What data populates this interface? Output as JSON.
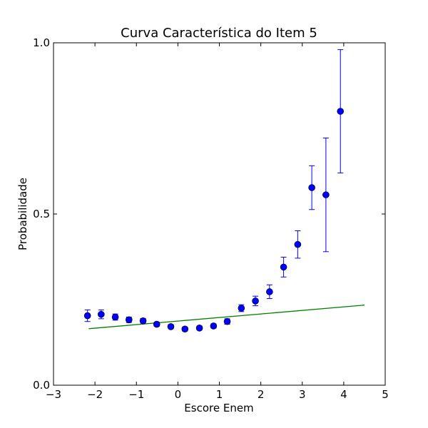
{
  "chart_data": {
    "type": "scatter",
    "title": "Curva Característica do Item 5",
    "xlabel": "Escore Enem",
    "ylabel": "Probabilidade",
    "xlim": [
      -3,
      5
    ],
    "ylim": [
      0.0,
      1.0
    ],
    "x_ticks": [
      -3,
      -2,
      -1,
      0,
      1,
      2,
      3,
      4,
      5
    ],
    "x_tick_labels": [
      "−3",
      "−2",
      "−1",
      "0",
      "1",
      "2",
      "3",
      "4",
      "5"
    ],
    "y_ticks": [
      0.0,
      0.5,
      1.0
    ],
    "y_tick_labels": [
      "0.0",
      "0.5",
      "1.0"
    ],
    "grid": false,
    "colors": {
      "points": "#0000ff",
      "errorbars": "#0000ff",
      "curve": "#008000"
    },
    "series": [
      {
        "type": "scatter_errorbar",
        "points": [
          {
            "x": -2.18,
            "y": 0.203,
            "err": 0.017
          },
          {
            "x": -1.85,
            "y": 0.207,
            "err": 0.013
          },
          {
            "x": -1.51,
            "y": 0.199,
            "err": 0.009
          },
          {
            "x": -1.18,
            "y": 0.191,
            "err": 0.008
          },
          {
            "x": -0.84,
            "y": 0.188,
            "err": 0.007
          },
          {
            "x": -0.51,
            "y": 0.178,
            "err": 0.006
          },
          {
            "x": -0.17,
            "y": 0.171,
            "err": 0.006
          },
          {
            "x": 0.17,
            "y": 0.164,
            "err": 0.006
          },
          {
            "x": 0.52,
            "y": 0.167,
            "err": 0.006
          },
          {
            "x": 0.86,
            "y": 0.173,
            "err": 0.006
          },
          {
            "x": 1.19,
            "y": 0.186,
            "err": 0.008
          },
          {
            "x": 1.53,
            "y": 0.225,
            "err": 0.01
          },
          {
            "x": 1.87,
            "y": 0.246,
            "err": 0.014
          },
          {
            "x": 2.21,
            "y": 0.273,
            "err": 0.02
          },
          {
            "x": 2.55,
            "y": 0.345,
            "err": 0.029
          },
          {
            "x": 2.89,
            "y": 0.411,
            "err": 0.04
          },
          {
            "x": 3.23,
            "y": 0.577,
            "err": 0.064
          },
          {
            "x": 3.57,
            "y": 0.556,
            "err": 0.166
          },
          {
            "x": 3.92,
            "y": 0.8,
            "err": 0.18
          }
        ]
      },
      {
        "type": "line",
        "x": [
          -2.15,
          4.5
        ],
        "y": [
          0.165,
          0.234
        ]
      }
    ]
  }
}
